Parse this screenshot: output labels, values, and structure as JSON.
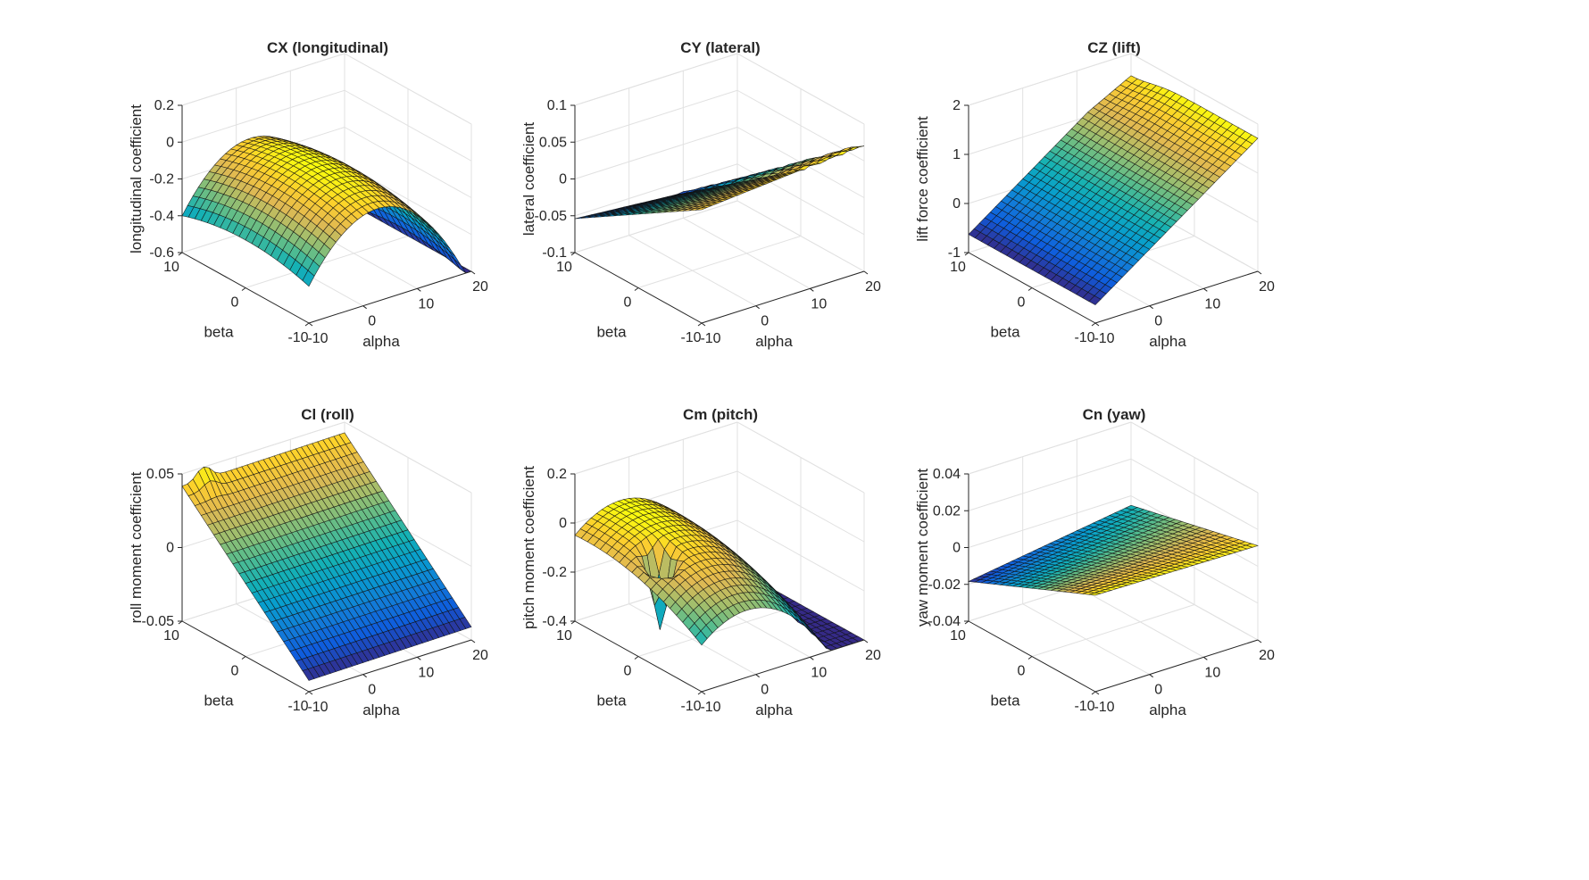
{
  "figure": {
    "background": "#ffffff",
    "colormap": "parula"
  },
  "chart_data": [
    {
      "type": "surface",
      "title": "CX (longitudinal)",
      "xlabel": "alpha",
      "ylabel": "beta",
      "zlabel": "longitudinal coefficient",
      "xlim": [
        -10,
        20
      ],
      "ylim": [
        -10,
        10
      ],
      "zlim": [
        -0.6,
        0.2
      ],
      "xticks": [
        "-10",
        "0",
        "10",
        "20"
      ],
      "yticks": [
        "-10",
        "0",
        "10"
      ],
      "zticks": [
        "-0.6",
        "-0.4",
        "-0.2",
        "0",
        "0.2"
      ],
      "model": {
        "kind": "cx",
        "c0": -0.05,
        "c1": 0.01,
        "c2": -0.0019,
        "b2": -0.0006
      }
    },
    {
      "type": "surface",
      "title": "CY (lateral)",
      "xlabel": "alpha",
      "ylabel": "beta",
      "zlabel": "lateral coefficient",
      "xlim": [
        -10,
        20
      ],
      "ylim": [
        -10,
        10
      ],
      "zlim": [
        -0.1,
        0.1
      ],
      "xticks": [
        "-10",
        "0",
        "10",
        "20"
      ],
      "yticks": [
        "-10",
        "0",
        "10"
      ],
      "zticks": [
        "-0.1",
        "-0.05",
        "0",
        "0.05",
        "0.1"
      ],
      "model": {
        "kind": "cy",
        "b1": -0.006
      }
    },
    {
      "type": "surface",
      "title": "CZ (lift)",
      "xlabel": "alpha",
      "ylabel": "beta",
      "zlabel": "lift force coefficient",
      "xlim": [
        -10,
        20
      ],
      "ylim": [
        -10,
        10
      ],
      "zlim": [
        -1,
        2
      ],
      "xticks": [
        "-10",
        "0",
        "10",
        "20"
      ],
      "yticks": [
        "-10",
        "0",
        "10"
      ],
      "zticks": [
        "-1",
        "0",
        "1",
        "2"
      ],
      "model": {
        "kind": "cz",
        "c0": 0.15,
        "c1": 0.078
      }
    },
    {
      "type": "surface",
      "title": "Cl (roll)",
      "xlabel": "alpha",
      "ylabel": "beta",
      "zlabel": "roll moment coefficient",
      "xlim": [
        -10,
        20
      ],
      "ylim": [
        -10,
        10
      ],
      "zlim": [
        -0.05,
        0.05
      ],
      "xticks": [
        "-10",
        "0",
        "10",
        "20"
      ],
      "yticks": [
        "-10",
        "0",
        "10"
      ],
      "zticks": [
        "-0.05",
        "0",
        "0.05"
      ],
      "model": {
        "kind": "cl",
        "b1": 0.0042,
        "peakAlpha": -6,
        "peakBeta": 10,
        "peak": 0.009
      }
    },
    {
      "type": "surface",
      "title": "Cm (pitch)",
      "xlabel": "alpha",
      "ylabel": "beta",
      "zlabel": "pitch moment coefficient",
      "xlim": [
        -10,
        20
      ],
      "ylim": [
        -10,
        10
      ],
      "zlim": [
        -0.4,
        0.2
      ],
      "xticks": [
        "-10",
        "0",
        "10",
        "20"
      ],
      "yticks": [
        "-10",
        "0",
        "10"
      ],
      "zticks": [
        "-0.4",
        "-0.2",
        "0",
        "0.2"
      ],
      "model": {
        "kind": "cm",
        "c0": 0.0,
        "c1": -0.004,
        "c2": -0.0012,
        "b2": -0.0005,
        "spikeAlpha": -6,
        "spikeBeta": 0,
        "spike": -0.3
      }
    },
    {
      "type": "surface",
      "title": "Cn (yaw)",
      "xlabel": "alpha",
      "ylabel": "beta",
      "zlabel": "yaw moment coefficient",
      "xlim": [
        -10,
        20
      ],
      "ylim": [
        -10,
        10
      ],
      "zlim": [
        -0.04,
        0.04
      ],
      "xticks": [
        "-10",
        "0",
        "10",
        "20"
      ],
      "yticks": [
        "-10",
        "0",
        "10"
      ],
      "zticks": [
        "-0.04",
        "-0.02",
        "0",
        "0.02",
        "0.04"
      ],
      "model": {
        "kind": "cn",
        "b1": -0.0013,
        "ab": 0.00012
      }
    }
  ]
}
